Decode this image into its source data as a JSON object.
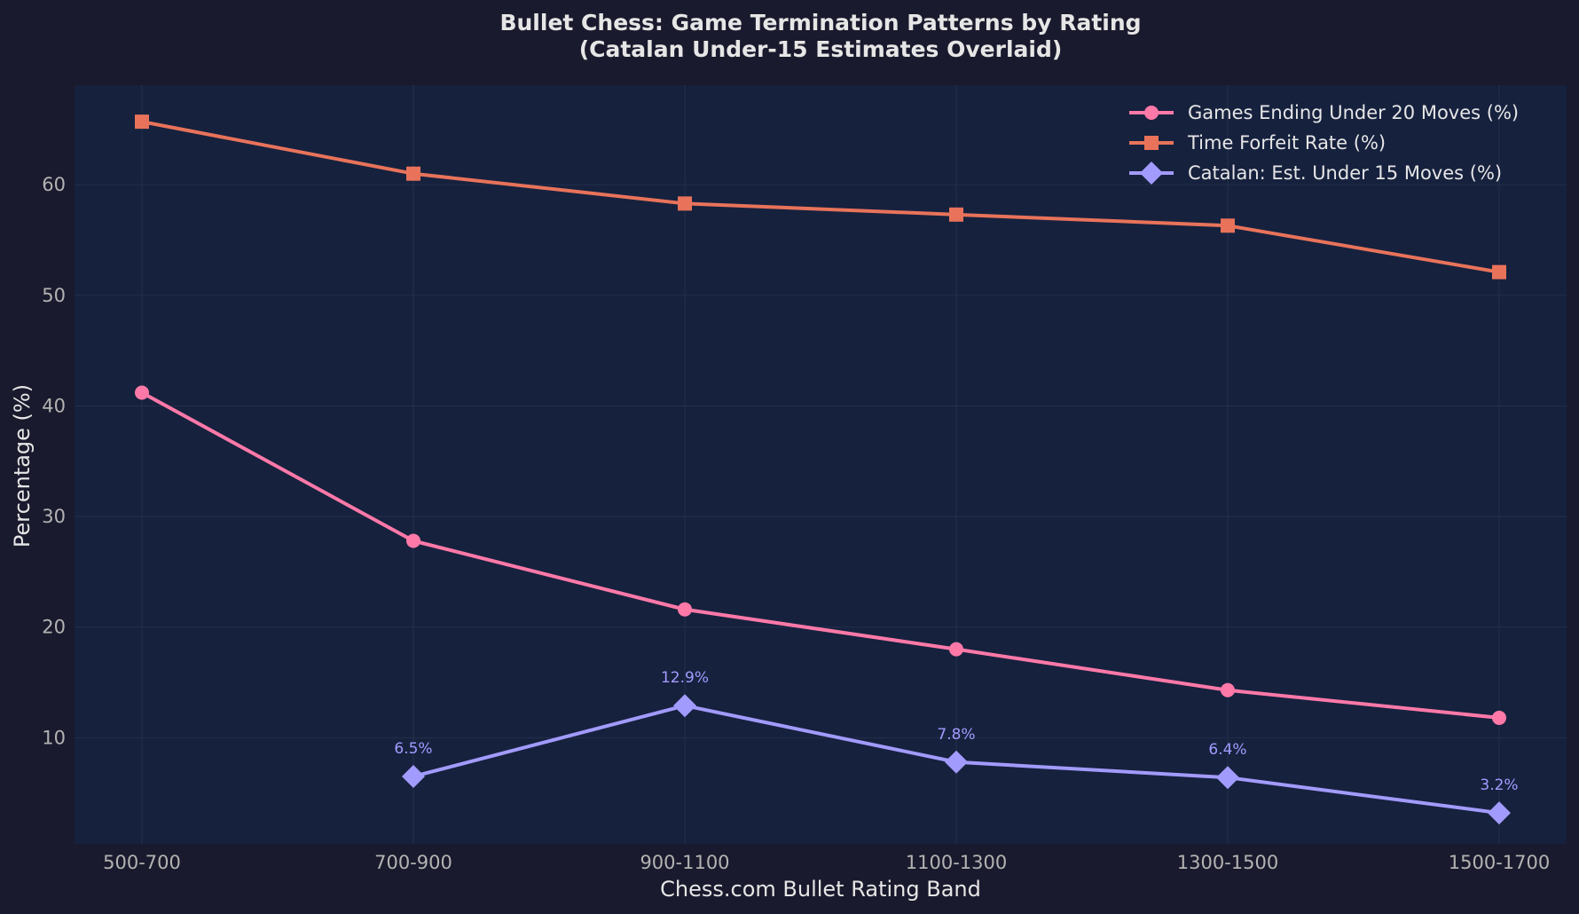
{
  "chart_data": {
    "type": "line",
    "title": "Bullet Chess: Game Termination Patterns by Rating",
    "subtitle": "(Catalan Under-15 Estimates Overlaid)",
    "xlabel": "Chess.com Bullet Rating Band",
    "ylabel": "Percentage (%)",
    "categories": [
      "500-700",
      "700-900",
      "900-1100",
      "1100-1300",
      "1300-1500",
      "1500-1700"
    ],
    "ylim": [
      0.4,
      69
    ],
    "yticks": [
      10,
      20,
      30,
      40,
      50,
      60
    ],
    "grid": true,
    "legend_position": "top-right",
    "colors": {
      "background": "#1a1a2e",
      "plot_background": "#16213e",
      "grid": "#232f4b"
    },
    "series": [
      {
        "name": "Games Ending Under 20 Moves (%)",
        "color": "#ff79a8",
        "marker": "circle",
        "values": [
          41.2,
          27.8,
          21.6,
          18.0,
          14.3,
          11.8
        ]
      },
      {
        "name": "Time Forfeit Rate (%)",
        "color": "#e8735a",
        "marker": "square",
        "values": [
          65.7,
          61.0,
          58.3,
          57.3,
          56.3,
          52.1
        ]
      },
      {
        "name": "Catalan: Est. Under 15 Moves (%)",
        "color": "#a29bfe",
        "marker": "diamond",
        "values": [
          null,
          6.5,
          12.9,
          7.8,
          6.4,
          3.2
        ],
        "data_labels": [
          null,
          "6.5%",
          "12.9%",
          "7.8%",
          "6.4%",
          "3.2%"
        ]
      }
    ]
  }
}
